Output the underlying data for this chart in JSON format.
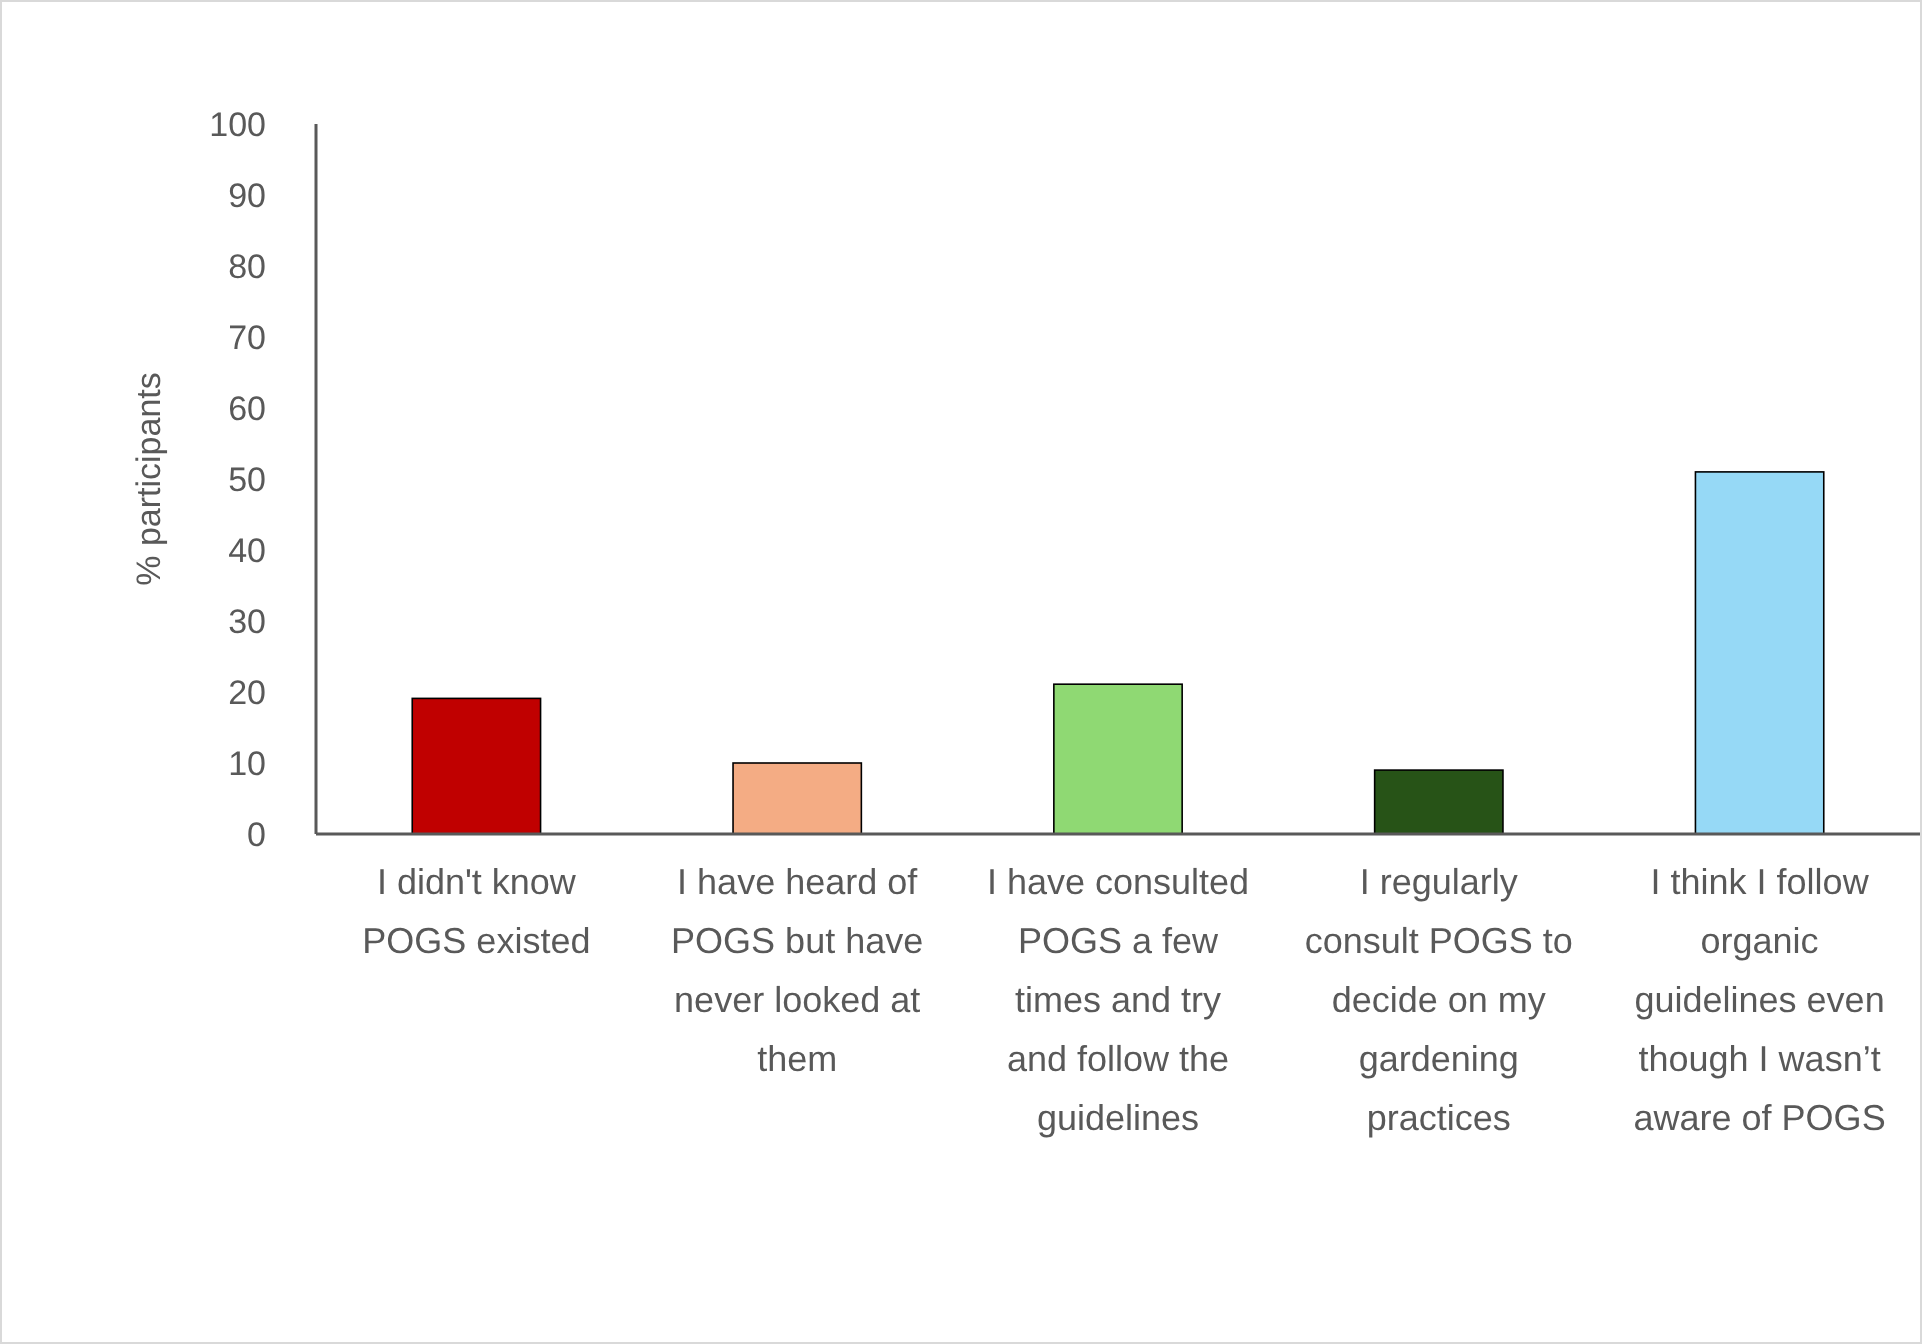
{
  "chart_data": {
    "type": "bar",
    "ylabel": "% participants",
    "categories": [
      "I didn't know POGS existed",
      "I have heard of POGS but have never looked at them",
      "I have consulted POGS a few times and try and follow the guidelines",
      "I regularly consult POGS to decide on my gardening practices",
      "I think I follow organic guidelines even though I wasn’t aware of POGS"
    ],
    "values": [
      19.1,
      10,
      21.1,
      9,
      51
    ],
    "colors": [
      "#c00000",
      "#f4ac84",
      "#8fd973",
      "#275317",
      "#96d9f6"
    ],
    "ylim": [
      0,
      100
    ],
    "yticks": [
      0,
      10,
      20,
      30,
      40,
      50,
      60,
      70,
      80,
      90,
      100
    ],
    "grid": false
  }
}
